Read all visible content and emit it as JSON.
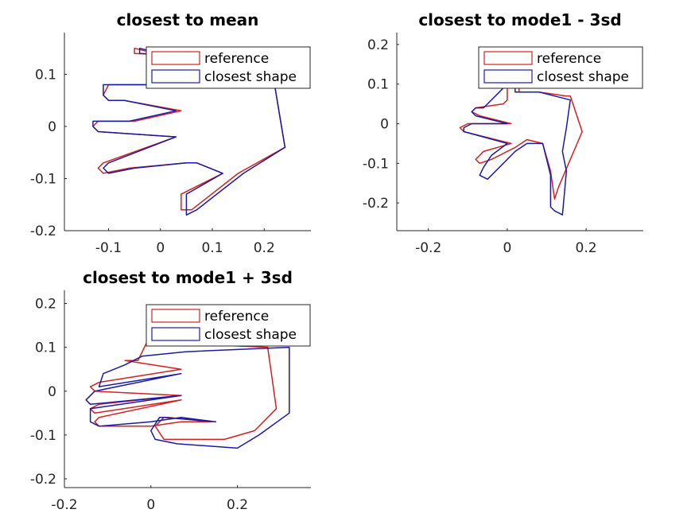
{
  "colors": {
    "reference": "#d42020",
    "closest": "#1a1aa8",
    "axis": "#262626"
  },
  "chart_data": [
    {
      "type": "line",
      "title": "closest to mean",
      "xlabel": "",
      "ylabel": "",
      "xlim": [
        -0.185,
        0.29
      ],
      "ylim": [
        -0.2,
        0.18
      ],
      "xticks": [
        -0.1,
        0,
        0.1,
        0.2
      ],
      "xtick_labels": [
        "-0.1",
        "0",
        "0.1",
        "0.2"
      ],
      "yticks": [
        -0.2,
        -0.1,
        0,
        0.1
      ],
      "ytick_labels": [
        "-0.2",
        "-0.1",
        "0",
        "0.1"
      ],
      "legend": {
        "position": "top-right",
        "entries": [
          "reference",
          "closest shape"
        ]
      },
      "series": [
        {
          "name": "reference",
          "color": "#d42020",
          "x": [
            -0.05,
            -0.05,
            -0.01,
            -0.02,
            -0.1,
            -0.11,
            -0.1,
            -0.07,
            0.04,
            -0.05,
            -0.12,
            -0.13,
            -0.12,
            0.03,
            -0.11,
            -0.12,
            -0.11,
            -0.06,
            0.05,
            0.05,
            0.07,
            0.12,
            0.04,
            0.04,
            0.06,
            0.15,
            0.24,
            0.23,
            0.22,
            0.2
          ],
          "y": [
            0.14,
            0.15,
            0.14,
            0.08,
            0.08,
            0.06,
            0.05,
            0.05,
            0.03,
            0.01,
            0.01,
            0.0,
            -0.01,
            -0.02,
            -0.07,
            -0.08,
            -0.09,
            -0.08,
            -0.07,
            -0.07,
            -0.07,
            -0.09,
            -0.13,
            -0.16,
            -0.16,
            -0.09,
            -0.04,
            0.02,
            0.08,
            0.13
          ]
        },
        {
          "name": "closest shape",
          "color": "#1a1aa8",
          "x": [
            -0.04,
            -0.04,
            0.0,
            -0.01,
            -0.11,
            -0.11,
            -0.1,
            -0.07,
            0.03,
            -0.06,
            -0.13,
            -0.13,
            -0.12,
            0.03,
            -0.1,
            -0.11,
            -0.1,
            -0.05,
            0.05,
            0.05,
            0.07,
            0.12,
            0.05,
            0.05,
            0.07,
            0.16,
            0.24,
            0.23,
            0.22,
            0.21
          ],
          "y": [
            0.14,
            0.15,
            0.14,
            0.08,
            0.08,
            0.06,
            0.05,
            0.05,
            0.03,
            0.01,
            0.01,
            0.0,
            -0.01,
            -0.02,
            -0.07,
            -0.08,
            -0.09,
            -0.08,
            -0.07,
            -0.07,
            -0.07,
            -0.09,
            -0.13,
            -0.17,
            -0.16,
            -0.09,
            -0.04,
            0.02,
            0.08,
            0.13
          ]
        }
      ]
    },
    {
      "type": "line",
      "title": "closest to mode1 - 3sd",
      "xlabel": "",
      "ylabel": "",
      "xlim": [
        -0.28,
        0.345
      ],
      "ylim": [
        -0.27,
        0.23
      ],
      "xticks": [
        -0.2,
        0,
        0.2
      ],
      "xtick_labels": [
        "-0.2",
        "0",
        "0.2"
      ],
      "yticks": [
        -0.2,
        -0.1,
        0,
        0.1,
        0.2
      ],
      "ytick_labels": [
        "-0.2",
        "-0.1",
        "0",
        "0.1",
        "0.2"
      ],
      "legend": {
        "position": "top-right",
        "entries": [
          "reference",
          "closest shape"
        ]
      },
      "series": [
        {
          "name": "reference",
          "color": "#d42020",
          "x": [
            0.03,
            0.03,
            0.0,
            0.0,
            -0.01,
            -0.08,
            -0.09,
            -0.07,
            0.01,
            -0.1,
            -0.12,
            -0.11,
            0.01,
            -0.06,
            -0.08,
            -0.07,
            -0.04,
            0.02,
            0.05,
            0.09,
            0.11,
            0.12,
            0.13,
            0.19,
            0.16,
            0.15,
            0.08,
            0.06
          ],
          "y": [
            0.08,
            0.1,
            0.09,
            0.06,
            0.05,
            0.04,
            0.03,
            0.02,
            0.0,
            0.0,
            -0.01,
            -0.02,
            -0.05,
            -0.07,
            -0.09,
            -0.1,
            -0.09,
            -0.06,
            -0.04,
            -0.05,
            -0.12,
            -0.19,
            -0.16,
            -0.02,
            0.07,
            0.07,
            0.08,
            0.08
          ]
        },
        {
          "name": "closest shape",
          "color": "#1a1aa8",
          "x": [
            0.02,
            0.02,
            -0.01,
            -0.02,
            -0.06,
            -0.08,
            -0.09,
            -0.08,
            0.0,
            -0.09,
            -0.11,
            -0.11,
            0.0,
            -0.04,
            -0.06,
            -0.07,
            -0.05,
            0.02,
            0.05,
            0.09,
            0.11,
            0.11,
            0.12,
            0.14,
            0.15,
            0.14,
            0.15,
            0.16,
            0.08,
            0.06
          ],
          "y": [
            0.08,
            0.1,
            0.09,
            0.08,
            0.04,
            0.04,
            0.03,
            0.02,
            0.0,
            0.0,
            -0.01,
            -0.02,
            -0.05,
            -0.08,
            -0.11,
            -0.13,
            -0.14,
            -0.07,
            -0.05,
            -0.05,
            -0.13,
            -0.21,
            -0.22,
            -0.23,
            -0.12,
            -0.07,
            -0.01,
            0.06,
            0.08,
            0.08
          ]
        }
      ]
    },
    {
      "type": "line",
      "title": "closest to mode1 + 3sd",
      "xlabel": "",
      "ylabel": "",
      "xlim": [
        -0.2,
        0.37
      ],
      "ylim": [
        -0.22,
        0.23
      ],
      "xticks": [
        -0.2,
        0,
        0.2
      ],
      "xtick_labels": [
        "-0.2",
        "0",
        "0.2"
      ],
      "yticks": [
        -0.2,
        -0.1,
        0,
        0.1,
        0.2
      ],
      "ytick_labels": [
        "-0.2",
        "-0.1",
        "0",
        "0.1",
        "0.2"
      ],
      "legend": {
        "position": "top-right",
        "entries": [
          "reference",
          "closest shape"
        ]
      },
      "series": [
        {
          "name": "reference",
          "color": "#d42020",
          "x": [
            0.04,
            0.04,
            -0.01,
            -0.03,
            -0.06,
            0.07,
            -0.12,
            -0.14,
            -0.13,
            0.07,
            -0.12,
            -0.14,
            -0.13,
            0.07,
            -0.12,
            -0.13,
            -0.12,
            0.0,
            0.07,
            0.14,
            0.04,
            0.03,
            0.01,
            0.03,
            0.17,
            0.24,
            0.29,
            0.28,
            0.27
          ],
          "y": [
            0.11,
            0.12,
            0.11,
            0.07,
            0.07,
            0.05,
            0.02,
            0.01,
            0.0,
            -0.01,
            -0.03,
            -0.04,
            -0.05,
            -0.02,
            -0.06,
            -0.07,
            -0.08,
            -0.08,
            -0.07,
            -0.07,
            -0.06,
            -0.06,
            -0.08,
            -0.11,
            -0.11,
            -0.09,
            -0.04,
            0.03,
            0.1
          ]
        },
        {
          "name": "closest shape",
          "color": "#1a1aa8",
          "x": [
            0.08,
            -0.02,
            -0.04,
            -0.04,
            -0.06,
            -0.11,
            -0.12,
            0.07,
            -0.13,
            -0.15,
            -0.14,
            0.07,
            -0.14,
            -0.14,
            -0.12,
            0.0,
            0.07,
            0.15,
            0.03,
            0.02,
            0.0,
            0.01,
            0.06,
            0.2,
            0.25,
            0.32,
            0.32,
            0.32
          ],
          "y": [
            0.09,
            0.08,
            0.07,
            0.07,
            0.06,
            0.04,
            0.01,
            0.04,
            0.0,
            -0.02,
            -0.03,
            -0.01,
            -0.04,
            -0.07,
            -0.08,
            -0.07,
            -0.06,
            -0.07,
            -0.06,
            -0.06,
            -0.09,
            -0.11,
            -0.12,
            -0.13,
            -0.1,
            -0.05,
            0.03,
            0.1
          ]
        }
      ]
    }
  ]
}
